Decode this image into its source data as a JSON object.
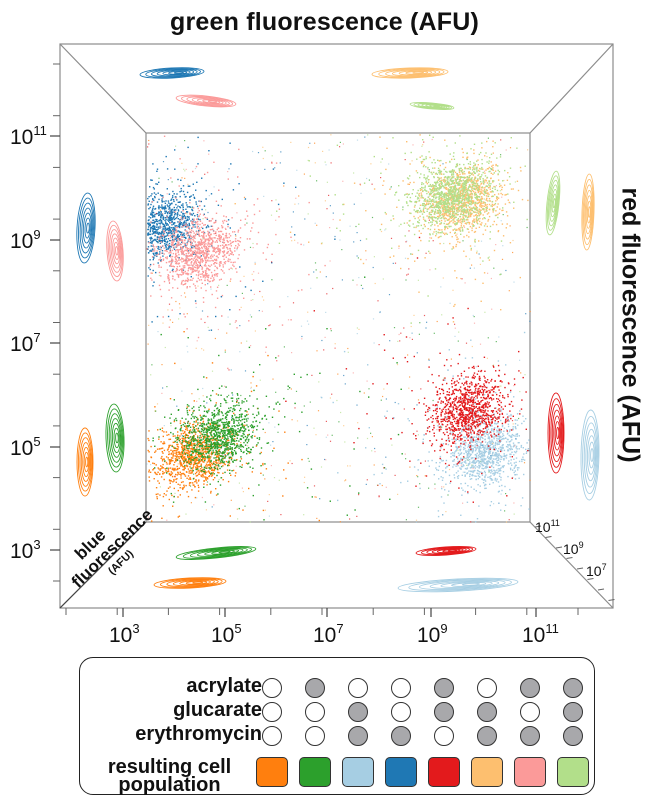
{
  "chart_data": {
    "type": "scatter",
    "title_top": "green fluorescence (AFU)",
    "title_right": "red fluorescence (AFU)",
    "depth_label_line1": "blue",
    "depth_label_line2": "fluorescence",
    "depth_label_unit": "(AFU)",
    "x_ticks": [
      {
        "base": "10",
        "exp": "3"
      },
      {
        "base": "10",
        "exp": "5"
      },
      {
        "base": "10",
        "exp": "7"
      },
      {
        "base": "10",
        "exp": "9"
      },
      {
        "base": "10",
        "exp": "11"
      }
    ],
    "y_ticks": [
      {
        "base": "10",
        "exp": "11"
      },
      {
        "base": "10",
        "exp": "9"
      },
      {
        "base": "10",
        "exp": "7"
      },
      {
        "base": "10",
        "exp": "5"
      },
      {
        "base": "10",
        "exp": "3"
      }
    ],
    "z_ticks": [
      {
        "base": "10",
        "exp": "11"
      },
      {
        "base": "10",
        "exp": "9"
      },
      {
        "base": "10",
        "exp": "7"
      }
    ],
    "x_scale": "log",
    "y_scale": "log",
    "z_scale": "log",
    "x_range": [
      100,
      1000000000000.0
    ],
    "y_range": [
      100,
      1000000000000.0
    ],
    "series": [
      {
        "color": "#ff7f0e",
        "green_log": 4.5,
        "red_log": 4.9,
        "blue_log": 8.0
      },
      {
        "color": "#2ca02c",
        "green_log": 5.0,
        "red_log": 5.3,
        "blue_log": 3.5
      },
      {
        "color": "#a6cee3",
        "green_log": 10.1,
        "red_log": 5.0,
        "blue_log": 9.0
      },
      {
        "color": "#1f78b4",
        "green_log": 3.9,
        "red_log": 9.4,
        "blue_log": 8.6
      },
      {
        "color": "#e31a1c",
        "green_log": 9.8,
        "red_log": 5.8,
        "blue_log": 2.8
      },
      {
        "color": "#fdbf6f",
        "green_log": 9.7,
        "red_log": 9.9,
        "blue_log": 9.4
      },
      {
        "color": "#fb9a99",
        "green_log": 4.6,
        "red_log": 8.9,
        "blue_log": 2.5
      },
      {
        "color": "#b2df8a",
        "green_log": 9.5,
        "red_log": 10.0,
        "blue_log": 3.3
      }
    ]
  },
  "legend": {
    "rows": [
      {
        "label": "acrylate",
        "states": [
          false,
          true,
          false,
          false,
          true,
          false,
          true,
          true
        ]
      },
      {
        "label": "glucarate",
        "states": [
          false,
          false,
          true,
          false,
          true,
          true,
          false,
          true
        ]
      },
      {
        "label": "erythromycin",
        "states": [
          false,
          false,
          true,
          true,
          false,
          true,
          true,
          true
        ]
      }
    ],
    "population_label_line1": "resulting cell",
    "population_label_line2": "population",
    "population_colors": [
      "#ff7f0e",
      "#2ca02c",
      "#a6cee3",
      "#1f78b4",
      "#e31a1c",
      "#fdbf6f",
      "#fb9a99",
      "#b2df8a"
    ],
    "state_on_color": "#a8a8ab",
    "state_off_color": "#ffffff"
  }
}
